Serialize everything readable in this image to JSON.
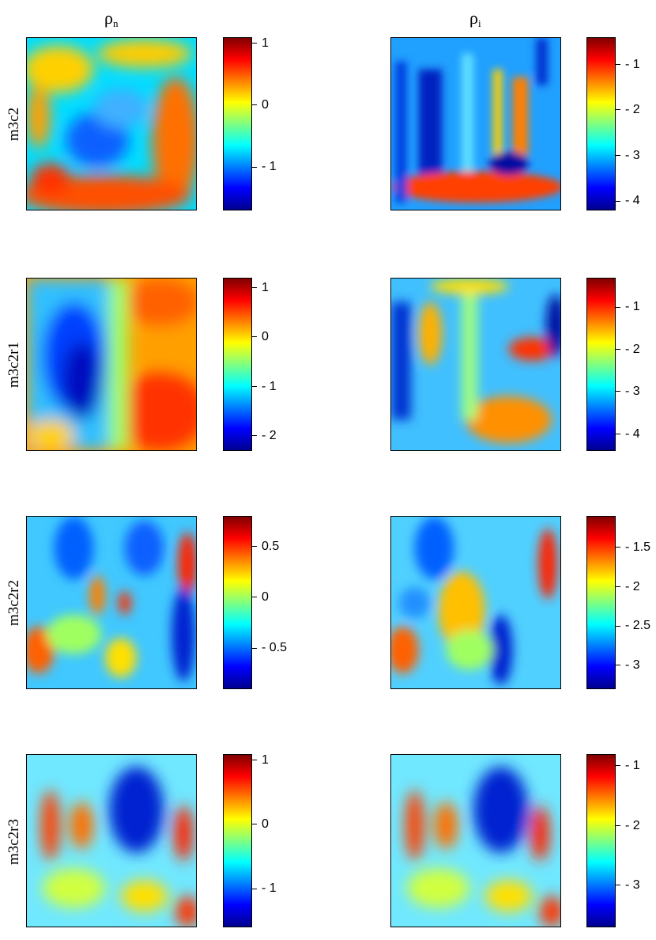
{
  "columns": [
    {
      "symbol": "ρ",
      "sub": "n"
    },
    {
      "symbol": "ρ",
      "sub": "i"
    }
  ],
  "rows": [
    {
      "label": "m3c2",
      "n_ticks": [
        "1",
        "0",
        "- 1"
      ],
      "n_range": [
        -1.7,
        1.1
      ],
      "i_ticks": [
        "- 1",
        "- 2",
        "- 3",
        "- 4"
      ],
      "i_range": [
        -4.2,
        -0.4
      ]
    },
    {
      "label": "m3c2r1",
      "n_ticks": [
        "1",
        "0",
        "- 1",
        "- 2"
      ],
      "n_range": [
        -2.3,
        1.2
      ],
      "i_ticks": [
        "- 1",
        "- 2",
        "- 3",
        "- 4"
      ],
      "i_range": [
        -4.4,
        -0.3
      ]
    },
    {
      "label": "m3c2r2",
      "n_ticks": [
        "0.5",
        "0",
        "- 0.5"
      ],
      "n_range": [
        -0.9,
        0.8
      ],
      "i_ticks": [
        "- 1.5",
        "- 2",
        "- 2.5",
        "- 3"
      ],
      "i_range": [
        -3.3,
        -1.1
      ]
    },
    {
      "label": "m3c2r3",
      "n_ticks": [
        "1",
        "0",
        "- 1"
      ],
      "n_range": [
        -1.6,
        1.1
      ],
      "i_ticks": [
        "- 1",
        "- 2",
        "- 3"
      ],
      "i_range": [
        -3.7,
        -0.8
      ]
    }
  ],
  "colormap": [
    "#00008f",
    "#0000ff",
    "#00ffff",
    "#ffff00",
    "#ff0000",
    "#800000"
  ]
}
